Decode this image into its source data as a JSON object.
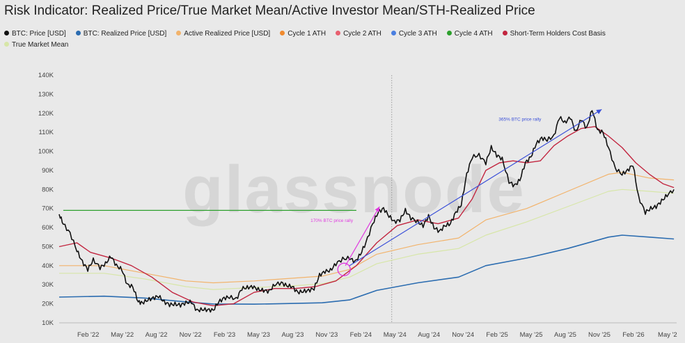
{
  "chart_data": {
    "type": "line",
    "title": "Risk Indicator: Realized Price/True Market Mean/Active Investor Mean/STH-Realized Price",
    "watermark": "glassnode",
    "y_ticks": [
      "10K",
      "20K",
      "30K",
      "40K",
      "50K",
      "60K",
      "70K",
      "80K",
      "90K",
      "100K",
      "110K",
      "120K",
      "130K",
      "140K"
    ],
    "ylim": [
      10000,
      140000
    ],
    "x_ticks": [
      "Feb '22",
      "May '22",
      "Aug '22",
      "Nov '22",
      "Feb '23",
      "May '23",
      "Aug '23",
      "Nov '23",
      "Feb '24",
      "May '24",
      "Aug '24",
      "Nov '24",
      "Feb '25",
      "May '25",
      "Aug '25",
      "Nov '25",
      "Feb '26",
      "May '2"
    ],
    "xlim": [
      2021.87,
      2026.4
    ],
    "grid": false,
    "legend_position": "top-left",
    "colors": {
      "price": "#111111",
      "realized": "#2b6cb0",
      "active": "#f2b36b",
      "cycle1": "#f08a2e",
      "cycle2": "#e8606f",
      "cycle3": "#4a7fe0",
      "cycle4": "#2ca02c",
      "sth": "#c2253f",
      "tmm": "#d7e6a8",
      "arrow_blue": "#3a4fd8",
      "arrow_magenta": "#e03ce0"
    },
    "series": [
      {
        "key": "price",
        "name": "BTC: Price [USD]",
        "x": [
          2021.87,
          2021.9,
          2021.95,
          2022.0,
          2022.04,
          2022.08,
          2022.12,
          2022.17,
          2022.21,
          2022.25,
          2022.29,
          2022.33,
          2022.37,
          2022.41,
          2022.45,
          2022.48,
          2022.52,
          2022.56,
          2022.6,
          2022.64,
          2022.68,
          2022.72,
          2022.76,
          2022.8,
          2022.84,
          2022.88,
          2022.92,
          2022.96,
          2023.0,
          2023.04,
          2023.08,
          2023.12,
          2023.17,
          2023.21,
          2023.25,
          2023.29,
          2023.33,
          2023.37,
          2023.41,
          2023.45,
          2023.5,
          2023.54,
          2023.58,
          2023.62,
          2023.66,
          2023.7,
          2023.74,
          2023.78,
          2023.82,
          2023.86,
          2023.9,
          2023.95,
          2024.0,
          2024.04,
          2024.08,
          2024.12,
          2024.17,
          2024.21,
          2024.25,
          2024.29,
          2024.33,
          2024.37,
          2024.41,
          2024.45,
          2024.5,
          2024.54,
          2024.58,
          2024.62,
          2024.66,
          2024.7,
          2024.74,
          2024.78,
          2024.82,
          2024.86,
          2024.9,
          2024.95,
          2025.0,
          2025.04,
          2025.08,
          2025.12,
          2025.17,
          2025.21,
          2025.25,
          2025.29,
          2025.33,
          2025.37,
          2025.41,
          2025.45,
          2025.5,
          2025.54,
          2025.58,
          2025.62,
          2025.66,
          2025.7,
          2025.74,
          2025.78,
          2025.82,
          2025.86,
          2025.9,
          2025.95,
          2026.0,
          2026.04,
          2026.08,
          2026.12,
          2026.17,
          2026.21,
          2026.25,
          2026.29,
          2026.33,
          2026.38
        ],
        "y": [
          67000,
          62000,
          57000,
          48000,
          42000,
          38000,
          43000,
          39000,
          41000,
          45000,
          40000,
          38000,
          30000,
          29000,
          21000,
          20500,
          22000,
          23000,
          24000,
          21000,
          19500,
          19800,
          19300,
          20500,
          21000,
          16500,
          17000,
          16800,
          16600,
          21000,
          23000,
          23500,
          22500,
          28000,
          28500,
          29000,
          27500,
          27000,
          26500,
          30000,
          31000,
          29500,
          29000,
          26000,
          26500,
          27000,
          28000,
          35000,
          37000,
          37500,
          41000,
          43500,
          44000,
          42000,
          46000,
          52000,
          62000,
          68000,
          70000,
          66000,
          63000,
          64000,
          69000,
          65000,
          63000,
          61000,
          66000,
          60000,
          58000,
          61000,
          62000,
          68000,
          72000,
          88000,
          97000,
          98000,
          94000,
          102000,
          98000,
          96000,
          84000,
          82000,
          85000,
          94000,
          97000,
          104000,
          107000,
          106000,
          108000,
          118000,
          115000,
          118000,
          110000,
          117000,
          112000,
          122000,
          111000,
          110000,
          102000,
          91000,
          88000,
          90000,
          93000,
          76000,
          68000,
          70000,
          71000,
          74000,
          77000,
          80000
        ]
      },
      {
        "key": "realized",
        "name": "BTC: Realized Price [USD]",
        "x": [
          2021.87,
          2022.2,
          2022.5,
          2022.8,
          2023.0,
          2023.3,
          2023.6,
          2023.8,
          2024.0,
          2024.2,
          2024.5,
          2024.8,
          2025.0,
          2025.3,
          2025.6,
          2025.9,
          2026.0,
          2026.2,
          2026.38
        ],
        "y": [
          23500,
          24000,
          23000,
          21000,
          19900,
          19800,
          20200,
          20500,
          22000,
          27000,
          31000,
          34000,
          40000,
          44000,
          49000,
          55000,
          56000,
          55000,
          54000
        ]
      },
      {
        "key": "active",
        "name": "Active Realized Price [USD]",
        "x": [
          2021.87,
          2022.2,
          2022.5,
          2022.8,
          2023.0,
          2023.3,
          2023.6,
          2023.8,
          2024.0,
          2024.2,
          2024.5,
          2024.8,
          2025.0,
          2025.3,
          2025.6,
          2025.9,
          2026.0,
          2026.2,
          2026.38
        ],
        "y": [
          40000,
          40000,
          36000,
          32000,
          31000,
          32000,
          33500,
          34500,
          38000,
          46000,
          51000,
          54500,
          64000,
          70000,
          79000,
          88000,
          89000,
          86000,
          85000
        ]
      },
      {
        "key": "cycle1",
        "name": "Cycle 1 ATH",
        "x": [],
        "y": []
      },
      {
        "key": "cycle2",
        "name": "Cycle 2 ATH",
        "x": [],
        "y": []
      },
      {
        "key": "cycle3",
        "name": "Cycle 3 ATH",
        "x": [],
        "y": []
      },
      {
        "key": "cycle4",
        "name": "Cycle 4 ATH",
        "x": [
          2021.9,
          2024.05
        ],
        "y": [
          69000,
          69000
        ]
      },
      {
        "key": "sth",
        "name": "Short-Term Holders Cost Basis",
        "x": [
          2021.87,
          2022.0,
          2022.1,
          2022.25,
          2022.4,
          2022.55,
          2022.7,
          2022.85,
          2023.0,
          2023.15,
          2023.3,
          2023.45,
          2023.6,
          2023.75,
          2023.9,
          2024.05,
          2024.2,
          2024.35,
          2024.5,
          2024.65,
          2024.8,
          2024.9,
          2025.0,
          2025.1,
          2025.2,
          2025.3,
          2025.4,
          2025.5,
          2025.6,
          2025.7,
          2025.8,
          2025.9,
          2026.0,
          2026.1,
          2026.2,
          2026.3,
          2026.38
        ],
        "y": [
          50000,
          52000,
          47000,
          44000,
          40000,
          34000,
          26000,
          21000,
          19000,
          20000,
          26000,
          28000,
          28000,
          29000,
          32000,
          40000,
          52000,
          61000,
          64000,
          62000,
          65000,
          75000,
          90000,
          94000,
          95000,
          94000,
          95000,
          103000,
          108000,
          112000,
          113000,
          108000,
          102000,
          94000,
          88000,
          83000,
          81000
        ]
      },
      {
        "key": "tmm",
        "name": "True Market Mean",
        "x": [
          2021.87,
          2022.2,
          2022.5,
          2022.8,
          2023.0,
          2023.3,
          2023.6,
          2023.8,
          2024.0,
          2024.2,
          2024.5,
          2024.8,
          2025.0,
          2025.3,
          2025.6,
          2025.9,
          2026.0,
          2026.2,
          2026.38
        ],
        "y": [
          36000,
          36000,
          33000,
          29000,
          27500,
          28500,
          29500,
          30500,
          34000,
          41000,
          46000,
          49000,
          56000,
          63000,
          71000,
          79000,
          80000,
          79000,
          78000
        ]
      }
    ],
    "annotations": [
      {
        "text": "170% BTC price rally",
        "x": 2023.87,
        "y": 63000
      },
      {
        "text": "365% BTC price rally",
        "x": 2025.25,
        "y": 116000
      }
    ],
    "arrows": [
      {
        "from_x": 2023.97,
        "from_y": 40000,
        "to_x": 2024.22,
        "to_y": 71000,
        "color_key": "arrow_magenta"
      },
      {
        "from_x": 2024.0,
        "from_y": 40000,
        "to_x": 2025.85,
        "to_y": 122000,
        "color_key": "arrow_blue"
      }
    ],
    "highlight_circle": {
      "x": 2023.96,
      "y": 38000
    },
    "divider_x": 2024.31
  }
}
